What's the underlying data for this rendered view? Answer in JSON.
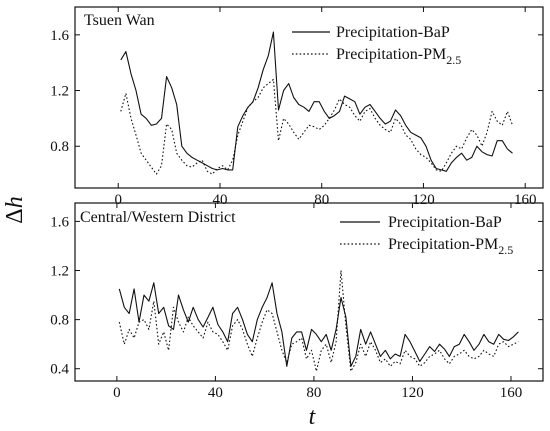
{
  "figure": {
    "ylabel_main": "Δ",
    "ylabel_italic": "h",
    "xlabel": "t"
  },
  "colors": {
    "line": "#111111",
    "background": "#ffffff"
  },
  "chart_data": [
    {
      "type": "line",
      "title": "Tsuen Wan",
      "xlabel": "t",
      "ylabel": "Δh",
      "xlim": [
        -17,
        167
      ],
      "ylim": [
        0.5,
        1.8
      ],
      "xticks": [
        0,
        40,
        80,
        120,
        160
      ],
      "yticks": [
        0.8,
        1.2,
        1.6
      ],
      "legend_position": "top-right",
      "grid": false,
      "series": [
        {
          "name": "Precipitation-BaP",
          "legend_main": "Precipitation-BaP",
          "legend_sub": "",
          "style": "solid",
          "x": [
            1,
            3,
            5,
            7,
            9,
            11,
            13,
            15,
            17,
            19,
            21,
            23,
            25,
            27,
            29,
            31,
            33,
            35,
            37,
            39,
            41,
            43,
            45,
            47,
            49,
            51,
            53,
            55,
            57,
            59,
            61,
            63,
            65,
            67,
            69,
            71,
            73,
            75,
            77,
            79,
            81,
            83,
            85,
            87,
            89,
            91,
            93,
            95,
            97,
            99,
            101,
            103,
            105,
            107,
            109,
            111,
            113,
            115,
            117,
            119,
            121,
            123,
            125,
            127,
            129,
            131,
            133,
            135,
            137,
            139,
            141,
            143,
            145,
            147,
            149,
            151,
            153,
            155
          ],
          "values": [
            1.42,
            1.48,
            1.32,
            1.2,
            1.03,
            1.0,
            0.95,
            0.96,
            1.0,
            1.3,
            1.22,
            1.1,
            0.8,
            0.75,
            0.72,
            0.7,
            0.68,
            0.66,
            0.64,
            0.63,
            0.64,
            0.63,
            0.63,
            0.94,
            1.02,
            1.08,
            1.12,
            1.22,
            1.35,
            1.45,
            1.62,
            1.06,
            1.2,
            1.25,
            1.15,
            1.1,
            1.08,
            1.05,
            1.12,
            1.12,
            1.05,
            1.0,
            1.02,
            1.05,
            1.16,
            1.14,
            1.12,
            1.03,
            1.08,
            1.1,
            1.05,
            1.0,
            0.96,
            0.98,
            1.06,
            1.02,
            0.95,
            0.9,
            0.88,
            0.86,
            0.8,
            0.7,
            0.64,
            0.63,
            0.62,
            0.68,
            0.72,
            0.75,
            0.7,
            0.72,
            0.8,
            0.76,
            0.74,
            0.73,
            0.84,
            0.84,
            0.78,
            0.75
          ]
        },
        {
          "name": "Precipitation-PM2.5",
          "legend_main": "Precipitation-PM",
          "legend_sub": "2.5",
          "style": "dotted",
          "x": [
            1,
            3,
            5,
            7,
            9,
            11,
            13,
            15,
            17,
            19,
            21,
            23,
            25,
            27,
            29,
            31,
            33,
            35,
            37,
            39,
            41,
            43,
            45,
            47,
            49,
            51,
            53,
            55,
            57,
            59,
            61,
            63,
            65,
            67,
            69,
            71,
            73,
            75,
            77,
            79,
            81,
            83,
            85,
            87,
            89,
            91,
            93,
            95,
            97,
            99,
            101,
            103,
            105,
            107,
            109,
            111,
            113,
            115,
            117,
            119,
            121,
            123,
            125,
            127,
            129,
            131,
            133,
            135,
            137,
            139,
            141,
            143,
            145,
            147,
            149,
            151,
            153,
            155
          ],
          "values": [
            1.05,
            1.18,
            1.0,
            0.88,
            0.75,
            0.7,
            0.65,
            0.6,
            0.66,
            0.96,
            0.92,
            0.75,
            0.7,
            0.66,
            0.65,
            0.68,
            0.7,
            0.62,
            0.6,
            0.64,
            0.66,
            0.63,
            0.7,
            0.88,
            0.98,
            1.08,
            1.12,
            1.15,
            1.22,
            1.25,
            1.28,
            0.84,
            1.0,
            0.96,
            0.9,
            0.85,
            0.9,
            0.95,
            0.94,
            0.92,
            0.95,
            1.0,
            1.06,
            1.14,
            1.1,
            1.08,
            1.02,
            0.98,
            1.05,
            1.07,
            1.0,
            0.95,
            0.92,
            0.9,
            1.0,
            0.96,
            0.88,
            0.85,
            0.78,
            0.74,
            0.72,
            0.68,
            0.63,
            0.62,
            0.68,
            0.75,
            0.8,
            0.78,
            0.86,
            0.92,
            0.88,
            0.8,
            0.9,
            1.05,
            0.98,
            0.95,
            1.05,
            0.95
          ]
        }
      ]
    },
    {
      "type": "line",
      "title": "Central/Western District",
      "xlabel": "t",
      "ylabel": "Δh",
      "xlim": [
        -17,
        173
      ],
      "ylim": [
        0.3,
        1.75
      ],
      "xticks": [
        0,
        40,
        80,
        120,
        160
      ],
      "yticks": [
        0.4,
        0.8,
        1.2,
        1.6
      ],
      "legend_position": "top-right",
      "grid": false,
      "series": [
        {
          "name": "Precipitation-BaP",
          "legend_main": "Precipitation-BaP",
          "legend_sub": "",
          "style": "solid",
          "x": [
            1,
            3,
            5,
            7,
            9,
            11,
            13,
            15,
            17,
            19,
            21,
            23,
            25,
            27,
            29,
            31,
            33,
            35,
            37,
            39,
            41,
            43,
            45,
            47,
            49,
            51,
            53,
            55,
            57,
            59,
            61,
            63,
            65,
            67,
            69,
            71,
            73,
            75,
            77,
            79,
            81,
            83,
            85,
            87,
            89,
            91,
            93,
            95,
            97,
            99,
            101,
            103,
            105,
            107,
            109,
            111,
            113,
            115,
            117,
            119,
            121,
            123,
            125,
            127,
            129,
            131,
            133,
            135,
            137,
            139,
            141,
            143,
            145,
            147,
            149,
            151,
            153,
            155,
            157,
            159,
            161,
            163
          ],
          "values": [
            1.05,
            0.9,
            0.85,
            1.05,
            0.78,
            1.0,
            0.95,
            1.1,
            0.85,
            0.9,
            0.75,
            0.72,
            1.0,
            0.88,
            0.78,
            0.9,
            0.8,
            0.74,
            0.82,
            0.9,
            0.76,
            0.7,
            0.62,
            0.85,
            0.9,
            0.8,
            0.68,
            0.62,
            0.8,
            0.9,
            0.98,
            1.1,
            0.85,
            0.7,
            0.42,
            0.65,
            0.7,
            0.7,
            0.55,
            0.72,
            0.68,
            0.62,
            0.68,
            0.55,
            0.72,
            0.98,
            0.82,
            0.42,
            0.5,
            0.72,
            0.6,
            0.7,
            0.6,
            0.5,
            0.55,
            0.48,
            0.52,
            0.5,
            0.68,
            0.62,
            0.54,
            0.46,
            0.52,
            0.58,
            0.54,
            0.6,
            0.56,
            0.5,
            0.58,
            0.6,
            0.68,
            0.62,
            0.55,
            0.6,
            0.68,
            0.62,
            0.6,
            0.68,
            0.64,
            0.63,
            0.66,
            0.7
          ]
        },
        {
          "name": "Precipitation-PM2.5",
          "legend_main": "Precipitation-PM",
          "legend_sub": "2.5",
          "style": "dotted",
          "x": [
            1,
            3,
            5,
            7,
            9,
            11,
            13,
            15,
            17,
            19,
            21,
            23,
            25,
            27,
            29,
            31,
            33,
            35,
            37,
            39,
            41,
            43,
            45,
            47,
            49,
            51,
            53,
            55,
            57,
            59,
            61,
            63,
            65,
            67,
            69,
            71,
            73,
            75,
            77,
            79,
            81,
            83,
            85,
            87,
            89,
            91,
            93,
            95,
            97,
            99,
            101,
            103,
            105,
            107,
            109,
            111,
            113,
            115,
            117,
            119,
            121,
            123,
            125,
            127,
            129,
            131,
            133,
            135,
            137,
            139,
            141,
            143,
            145,
            147,
            149,
            151,
            153,
            155,
            157,
            159,
            161,
            163
          ],
          "values": [
            0.78,
            0.6,
            0.72,
            0.65,
            0.78,
            0.8,
            0.72,
            0.95,
            0.6,
            0.7,
            0.55,
            0.9,
            0.78,
            0.7,
            0.82,
            0.75,
            0.7,
            0.65,
            0.78,
            0.7,
            0.68,
            0.62,
            0.55,
            0.75,
            0.8,
            0.72,
            0.6,
            0.5,
            0.65,
            0.78,
            0.88,
            0.85,
            0.7,
            0.55,
            0.45,
            0.6,
            0.62,
            0.65,
            0.48,
            0.55,
            0.38,
            0.55,
            0.6,
            0.45,
            0.62,
            1.2,
            0.75,
            0.38,
            0.45,
            0.6,
            0.5,
            0.62,
            0.55,
            0.45,
            0.48,
            0.42,
            0.46,
            0.44,
            0.55,
            0.5,
            0.48,
            0.42,
            0.45,
            0.5,
            0.52,
            0.55,
            0.48,
            0.44,
            0.5,
            0.52,
            0.55,
            0.5,
            0.48,
            0.5,
            0.55,
            0.52,
            0.5,
            0.6,
            0.62,
            0.58,
            0.6,
            0.62
          ]
        }
      ]
    }
  ]
}
